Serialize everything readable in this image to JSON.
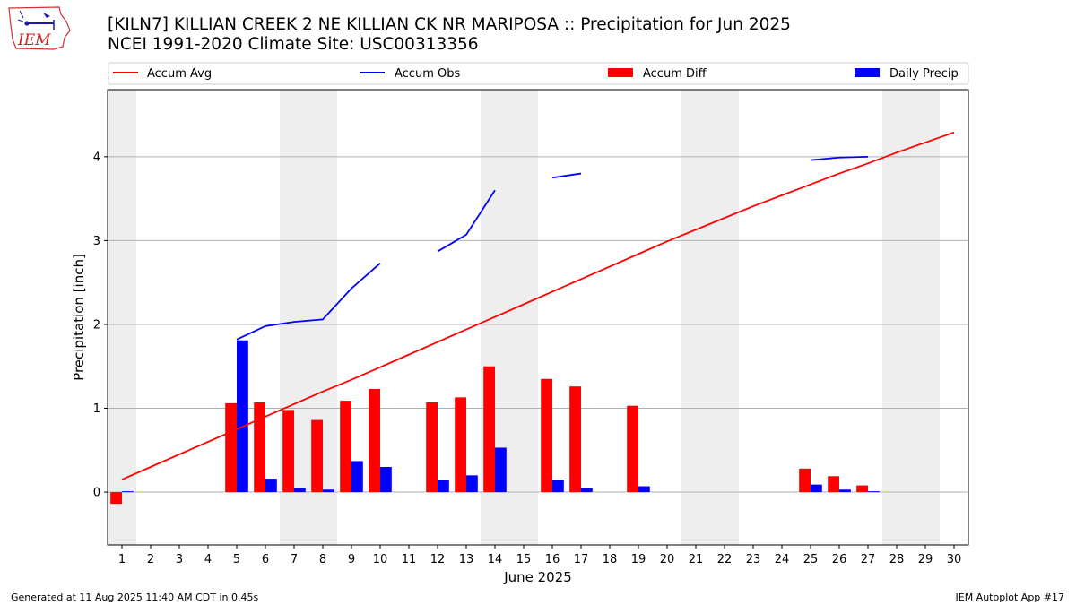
{
  "header": {
    "title_line1": "[KILN7] KILLIAN CREEK 2 NE KILLIAN CK NR MARIPOSA :: Precipitation for Jun 2025",
    "title_line2": "NCEI 1991-2020 Climate Site: USC00313356"
  },
  "logo": {
    "text": "IEM",
    "icon": "iem-logo-icon"
  },
  "footer": {
    "left": "Generated at 11 Aug 2025 11:40 AM CDT in 0.45s",
    "right": "IEM Autoplot App #17"
  },
  "colors": {
    "avg": "#ff0000",
    "obs": "#0000ff",
    "diff": "#ff0000",
    "daily": "#0000ff",
    "weekend": "#eeeeee",
    "grid": "#b0b0b0"
  },
  "chart_data": {
    "type": "bar",
    "xlabel": "June 2025",
    "ylabel": "Precipitation [inch]",
    "xlim": [
      0.5,
      30.5
    ],
    "ylim": [
      -0.63,
      4.8
    ],
    "xticks": [
      1,
      2,
      3,
      4,
      5,
      6,
      7,
      8,
      9,
      10,
      11,
      12,
      13,
      14,
      15,
      16,
      17,
      18,
      19,
      20,
      21,
      22,
      23,
      24,
      25,
      26,
      27,
      28,
      29,
      30
    ],
    "yticks": [
      0,
      1,
      2,
      3,
      4
    ],
    "grid": "horizontal",
    "legend_position": "top",
    "legend": [
      "Accum Avg",
      "Accum Obs",
      "Accum Diff",
      "Daily Precip"
    ],
    "weekend_days": [
      1,
      7,
      8,
      14,
      15,
      21,
      22,
      28,
      29
    ],
    "days": [
      1,
      2,
      3,
      4,
      5,
      6,
      7,
      8,
      9,
      10,
      11,
      12,
      13,
      14,
      15,
      16,
      17,
      18,
      19,
      20,
      21,
      22,
      23,
      24,
      25,
      26,
      27,
      28,
      29,
      30
    ],
    "series": [
      {
        "name": "Accum Avg",
        "kind": "line",
        "values": [
          0.15,
          0.3,
          0.45,
          0.6,
          0.75,
          0.9,
          1.05,
          1.2,
          1.34,
          1.49,
          1.64,
          1.79,
          1.94,
          2.09,
          2.24,
          2.39,
          2.54,
          2.69,
          2.84,
          2.99,
          3.13,
          3.27,
          3.41,
          3.54,
          3.67,
          3.8,
          3.92,
          4.05,
          4.17,
          4.29
        ]
      },
      {
        "name": "Accum Obs",
        "kind": "line",
        "values": [
          null,
          null,
          null,
          null,
          1.82,
          1.98,
          2.03,
          2.06,
          2.43,
          2.73,
          null,
          2.87,
          3.07,
          3.6,
          null,
          3.75,
          3.8,
          null,
          null,
          null,
          null,
          null,
          null,
          null,
          3.96,
          3.99,
          4.0,
          null,
          null,
          null
        ]
      },
      {
        "name": "Accum Diff",
        "kind": "bar",
        "values": [
          -0.14,
          0,
          0,
          0,
          1.06,
          1.07,
          0.98,
          0.86,
          1.09,
          1.23,
          0,
          1.07,
          1.13,
          1.5,
          0,
          1.35,
          1.26,
          0,
          1.03,
          0,
          0,
          0,
          0,
          0,
          0.28,
          0.19,
          0.08,
          0,
          0,
          0
        ]
      },
      {
        "name": "Daily Precip",
        "kind": "bar",
        "values": [
          0.01,
          0,
          0,
          0,
          1.81,
          0.16,
          0.05,
          0.03,
          0.37,
          0.3,
          0,
          0.14,
          0.2,
          0.53,
          0,
          0.15,
          0.05,
          0,
          0.07,
          0,
          0,
          0,
          0,
          0,
          0.09,
          0.03,
          0.01,
          0,
          0,
          0
        ]
      }
    ]
  }
}
